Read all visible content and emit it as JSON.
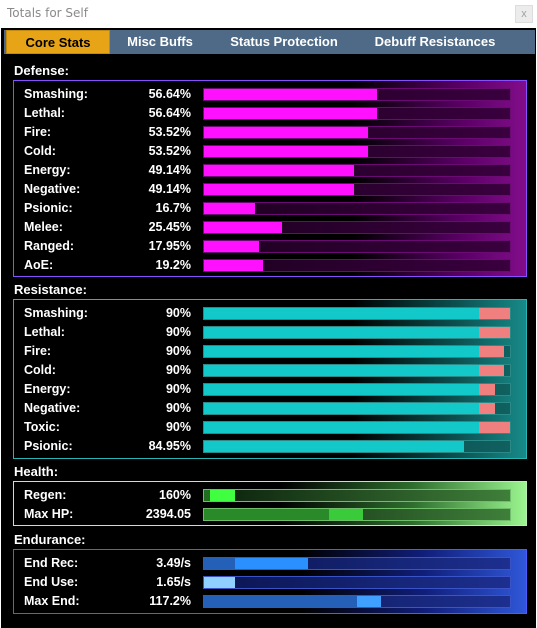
{
  "window": {
    "title": "Totals for Self",
    "close_label": "x"
  },
  "tabs": [
    {
      "label": "Core Stats",
      "active": true
    },
    {
      "label": "Misc Buffs",
      "active": false
    },
    {
      "label": "Status Protection",
      "active": false
    },
    {
      "label": "Debuff Resistances",
      "active": false
    }
  ],
  "colors": {
    "defense_bar": "#ff10ff",
    "resistance_bar": "#12c8c8",
    "resistance_overcap": "#f08080",
    "health_bar": "#3acb3a",
    "endurance_bar": "#2a8fff",
    "active_tab": "#e6a416"
  },
  "defense": {
    "title": "Defense:",
    "rows": [
      {
        "label": "Smashing:",
        "value": "56.64%",
        "fill": 0.5664
      },
      {
        "label": "Lethal:",
        "value": "56.64%",
        "fill": 0.5664
      },
      {
        "label": "Fire:",
        "value": "53.52%",
        "fill": 0.5352
      },
      {
        "label": "Cold:",
        "value": "53.52%",
        "fill": 0.5352
      },
      {
        "label": "Energy:",
        "value": "49.14%",
        "fill": 0.4914
      },
      {
        "label": "Negative:",
        "value": "49.14%",
        "fill": 0.4914
      },
      {
        "label": "Psionic:",
        "value": "16.7%",
        "fill": 0.167
      },
      {
        "label": "Melee:",
        "value": "25.45%",
        "fill": 0.2545
      },
      {
        "label": "Ranged:",
        "value": "17.95%",
        "fill": 0.1795
      },
      {
        "label": "AoE:",
        "value": "19.2%",
        "fill": 0.192
      }
    ]
  },
  "resistance": {
    "title": "Resistance:",
    "rows": [
      {
        "label": "Smashing:",
        "value": "90%",
        "fill": 0.9,
        "overcap": 0.1
      },
      {
        "label": "Lethal:",
        "value": "90%",
        "fill": 0.9,
        "overcap": 0.1
      },
      {
        "label": "Fire:",
        "value": "90%",
        "fill": 0.9,
        "overcap": 0.08
      },
      {
        "label": "Cold:",
        "value": "90%",
        "fill": 0.9,
        "overcap": 0.08
      },
      {
        "label": "Energy:",
        "value": "90%",
        "fill": 0.9,
        "overcap": 0.05
      },
      {
        "label": "Negative:",
        "value": "90%",
        "fill": 0.9,
        "overcap": 0.05
      },
      {
        "label": "Toxic:",
        "value": "90%",
        "fill": 0.9,
        "overcap": 0.1
      },
      {
        "label": "Psionic:",
        "value": "84.95%",
        "fill": 0.8495,
        "overcap": 0
      }
    ]
  },
  "health": {
    "title": "Health:",
    "regen": {
      "label": "Regen:",
      "value": "160%",
      "base": 0.02,
      "fill": 0.1
    },
    "max_hp": {
      "label": "Max HP:",
      "value": "2394.05",
      "base": 0.41,
      "fill": 0.52
    }
  },
  "endurance": {
    "title": "Endurance:",
    "end_rec": {
      "label": "End Rec:",
      "value": "3.49/s",
      "base": 0.1,
      "fill": 0.34
    },
    "end_use": {
      "label": "End Use:",
      "value": "1.65/s",
      "fill": 0.1
    },
    "max_end": {
      "label": "Max End:",
      "value": "117.2%",
      "base": 0.5,
      "fill": 0.58
    }
  }
}
